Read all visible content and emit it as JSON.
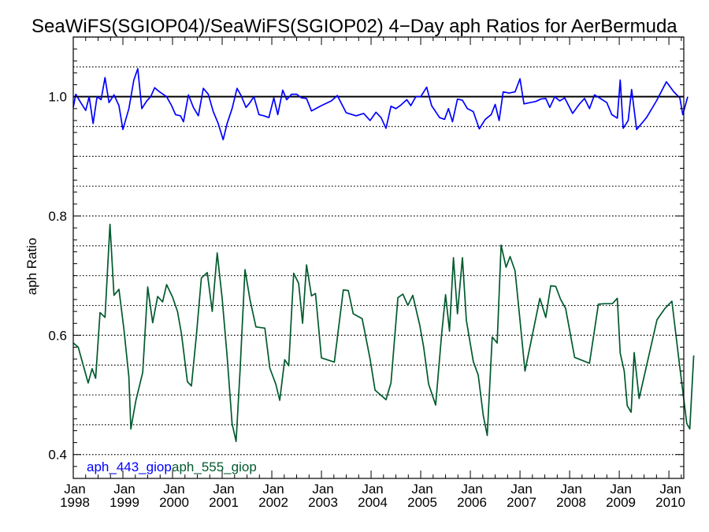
{
  "chart_data": {
    "type": "line",
    "title": "SeaWiFS(SGIOP04)/SeaWiFS(SGIOP02) 4−Day aph Ratios for AerBermuda",
    "ylabel": "aph Ratio",
    "xlabel": "",
    "xlim": [
      1998.0,
      2010.3
    ],
    "ylim": [
      0.36,
      1.1
    ],
    "y_ticks": [
      0.4,
      0.6,
      0.8,
      1.0
    ],
    "y_tick_labels": [
      "0.4",
      "0.6",
      "0.8",
      "1.0"
    ],
    "x_ticks": [
      {
        "x": 1998,
        "month": "Jan",
        "year": "1998"
      },
      {
        "x": 1999,
        "month": "Jan",
        "year": "1999"
      },
      {
        "x": 2000,
        "month": "Jan",
        "year": "2000"
      },
      {
        "x": 2001,
        "month": "Jan",
        "year": "2001"
      },
      {
        "x": 2002,
        "month": "Jan",
        "year": "2002"
      },
      {
        "x": 2003,
        "month": "Jan",
        "year": "2003"
      },
      {
        "x": 2004,
        "month": "Jan",
        "year": "2004"
      },
      {
        "x": 2005,
        "month": "Jan",
        "year": "2005"
      },
      {
        "x": 2006,
        "month": "Jan",
        "year": "2006"
      },
      {
        "x": 2007,
        "month": "Jan",
        "year": "2007"
      },
      {
        "x": 2008,
        "month": "Jan",
        "year": "2008"
      },
      {
        "x": 2009,
        "month": "Jan",
        "year": "2009"
      },
      {
        "x": 2010,
        "month": "Jan",
        "year": "2010"
      }
    ],
    "grid": "horizontal dotted",
    "reference_line": 1.0,
    "legend_position": "bottom-left",
    "series": [
      {
        "name": "aph_443_giop",
        "color": "#0000ff",
        "points": [
          [
            1998.0,
            0.982
          ],
          [
            1998.05,
            1.004
          ],
          [
            1998.15,
            0.99
          ],
          [
            1998.25,
            0.977
          ],
          [
            1998.32,
            1.0
          ],
          [
            1998.4,
            0.955
          ],
          [
            1998.48,
            1.0
          ],
          [
            1998.56,
            0.995
          ],
          [
            1998.64,
            1.032
          ],
          [
            1998.72,
            0.99
          ],
          [
            1998.82,
            1.003
          ],
          [
            1998.92,
            0.985
          ],
          [
            1999.0,
            0.945
          ],
          [
            1999.12,
            0.98
          ],
          [
            1999.22,
            1.028
          ],
          [
            1999.3,
            1.047
          ],
          [
            1999.38,
            0.98
          ],
          [
            1999.48,
            0.993
          ],
          [
            1999.56,
            1.0
          ],
          [
            1999.64,
            1.015
          ],
          [
            1999.74,
            1.008
          ],
          [
            1999.88,
            1.0
          ],
          [
            1999.98,
            0.985
          ],
          [
            2000.06,
            0.97
          ],
          [
            2000.16,
            0.968
          ],
          [
            2000.22,
            0.958
          ],
          [
            2000.32,
            1.003
          ],
          [
            2000.42,
            0.982
          ],
          [
            2000.52,
            0.968
          ],
          [
            2000.62,
            1.014
          ],
          [
            2000.72,
            1.004
          ],
          [
            2000.82,
            0.975
          ],
          [
            2000.92,
            0.955
          ],
          [
            2001.02,
            0.928
          ],
          [
            2001.1,
            0.955
          ],
          [
            2001.2,
            0.98
          ],
          [
            2001.3,
            1.014
          ],
          [
            2001.38,
            1.002
          ],
          [
            2001.48,
            0.982
          ],
          [
            2001.56,
            0.99
          ],
          [
            2001.64,
            1.0
          ],
          [
            2001.74,
            0.97
          ],
          [
            2001.84,
            0.968
          ],
          [
            2001.94,
            0.965
          ],
          [
            2002.04,
            0.998
          ],
          [
            2002.12,
            0.97
          ],
          [
            2002.22,
            1.011
          ],
          [
            2002.3,
            0.995
          ],
          [
            2002.4,
            1.004
          ],
          [
            2002.5,
            1.004
          ],
          [
            2002.6,
            0.998
          ],
          [
            2002.7,
            0.997
          ],
          [
            2002.8,
            0.976
          ],
          [
            2003.0,
            0.985
          ],
          [
            2003.2,
            0.993
          ],
          [
            2003.32,
            1.002
          ],
          [
            2003.5,
            0.973
          ],
          [
            2003.7,
            0.968
          ],
          [
            2003.85,
            0.972
          ],
          [
            2003.98,
            0.96
          ],
          [
            2004.1,
            0.974
          ],
          [
            2004.2,
            0.965
          ],
          [
            2004.3,
            0.947
          ],
          [
            2004.4,
            0.984
          ],
          [
            2004.5,
            0.98
          ],
          [
            2004.6,
            0.986
          ],
          [
            2004.72,
            0.995
          ],
          [
            2004.8,
            0.985
          ],
          [
            2004.9,
            1.0
          ],
          [
            2005.0,
            1.0
          ],
          [
            2005.12,
            1.016
          ],
          [
            2005.22,
            0.985
          ],
          [
            2005.38,
            0.965
          ],
          [
            2005.48,
            0.962
          ],
          [
            2005.56,
            0.98
          ],
          [
            2005.64,
            0.958
          ],
          [
            2005.74,
            0.996
          ],
          [
            2005.84,
            0.994
          ],
          [
            2005.94,
            0.98
          ],
          [
            2006.06,
            0.975
          ],
          [
            2006.18,
            0.946
          ],
          [
            2006.3,
            0.962
          ],
          [
            2006.42,
            0.97
          ],
          [
            2006.5,
            0.987
          ],
          [
            2006.58,
            0.96
          ],
          [
            2006.66,
            1.008
          ],
          [
            2006.78,
            1.006
          ],
          [
            2006.9,
            1.008
          ],
          [
            2007.0,
            1.03
          ],
          [
            2007.08,
            0.988
          ],
          [
            2007.2,
            0.99
          ],
          [
            2007.32,
            0.992
          ],
          [
            2007.42,
            0.996
          ],
          [
            2007.52,
            0.997
          ],
          [
            2007.6,
            0.982
          ],
          [
            2007.7,
            1.0
          ],
          [
            2007.8,
            0.993
          ],
          [
            2007.9,
            0.998
          ],
          [
            2008.06,
            0.972
          ],
          [
            2008.2,
            0.988
          ],
          [
            2008.3,
            0.997
          ],
          [
            2008.4,
            0.98
          ],
          [
            2008.5,
            1.003
          ],
          [
            2008.6,
            0.998
          ],
          [
            2008.75,
            0.99
          ],
          [
            2008.85,
            0.97
          ],
          [
            2008.96,
            0.964
          ],
          [
            2009.02,
            1.028
          ],
          [
            2009.08,
            0.947
          ],
          [
            2009.18,
            0.96
          ],
          [
            2009.25,
            1.012
          ],
          [
            2009.35,
            0.945
          ],
          [
            2009.55,
            0.965
          ],
          [
            2009.75,
            0.993
          ],
          [
            2009.95,
            1.025
          ],
          [
            2010.1,
            1.008
          ],
          [
            2010.22,
            0.998
          ],
          [
            2010.28,
            0.97
          ],
          [
            2010.38,
            1.0
          ]
        ]
      },
      {
        "name": "aph_555_giop",
        "color": "#005a2e",
        "points": [
          [
            1998.0,
            0.587
          ],
          [
            1998.1,
            0.58
          ],
          [
            1998.3,
            0.52
          ],
          [
            1998.38,
            0.544
          ],
          [
            1998.45,
            0.528
          ],
          [
            1998.54,
            0.638
          ],
          [
            1998.64,
            0.63
          ],
          [
            1998.74,
            0.786
          ],
          [
            1998.82,
            0.667
          ],
          [
            1998.92,
            0.677
          ],
          [
            1999.02,
            0.61
          ],
          [
            1999.12,
            0.53
          ],
          [
            1999.16,
            0.443
          ],
          [
            1999.26,
            0.49
          ],
          [
            1999.4,
            0.538
          ],
          [
            1999.5,
            0.681
          ],
          [
            1999.6,
            0.621
          ],
          [
            1999.7,
            0.665
          ],
          [
            1999.8,
            0.656
          ],
          [
            1999.88,
            0.685
          ],
          [
            2000.0,
            0.664
          ],
          [
            2000.1,
            0.64
          ],
          [
            2000.18,
            0.602
          ],
          [
            2000.3,
            0.522
          ],
          [
            2000.38,
            0.515
          ],
          [
            2000.48,
            0.6
          ],
          [
            2000.58,
            0.696
          ],
          [
            2000.7,
            0.705
          ],
          [
            2000.8,
            0.64
          ],
          [
            2000.9,
            0.738
          ],
          [
            2001.0,
            0.662
          ],
          [
            2001.1,
            0.565
          ],
          [
            2001.2,
            0.452
          ],
          [
            2001.28,
            0.422
          ],
          [
            2001.36,
            0.54
          ],
          [
            2001.46,
            0.71
          ],
          [
            2001.56,
            0.66
          ],
          [
            2001.68,
            0.614
          ],
          [
            2001.86,
            0.612
          ],
          [
            2001.96,
            0.545
          ],
          [
            2002.08,
            0.518
          ],
          [
            2002.16,
            0.491
          ],
          [
            2002.26,
            0.559
          ],
          [
            2002.34,
            0.549
          ],
          [
            2002.44,
            0.704
          ],
          [
            2002.54,
            0.687
          ],
          [
            2002.62,
            0.62
          ],
          [
            2002.7,
            0.718
          ],
          [
            2002.8,
            0.666
          ],
          [
            2002.88,
            0.67
          ],
          [
            2003.0,
            0.562
          ],
          [
            2003.26,
            0.555
          ],
          [
            2003.44,
            0.676
          ],
          [
            2003.54,
            0.675
          ],
          [
            2003.64,
            0.636
          ],
          [
            2003.82,
            0.628
          ],
          [
            2003.98,
            0.56
          ],
          [
            2004.08,
            0.508
          ],
          [
            2004.3,
            0.492
          ],
          [
            2004.4,
            0.52
          ],
          [
            2004.54,
            0.663
          ],
          [
            2004.64,
            0.669
          ],
          [
            2004.74,
            0.65
          ],
          [
            2004.84,
            0.667
          ],
          [
            2004.98,
            0.617
          ],
          [
            2005.06,
            0.58
          ],
          [
            2005.16,
            0.518
          ],
          [
            2005.3,
            0.483
          ],
          [
            2005.42,
            0.6
          ],
          [
            2005.5,
            0.668
          ],
          [
            2005.58,
            0.607
          ],
          [
            2005.66,
            0.73
          ],
          [
            2005.74,
            0.636
          ],
          [
            2005.84,
            0.73
          ],
          [
            2005.92,
            0.625
          ],
          [
            2006.06,
            0.556
          ],
          [
            2006.16,
            0.533
          ],
          [
            2006.26,
            0.466
          ],
          [
            2006.34,
            0.432
          ],
          [
            2006.44,
            0.597
          ],
          [
            2006.54,
            0.587
          ],
          [
            2006.62,
            0.751
          ],
          [
            2006.72,
            0.714
          ],
          [
            2006.8,
            0.732
          ],
          [
            2006.9,
            0.708
          ],
          [
            2007.0,
            0.625
          ],
          [
            2007.1,
            0.54
          ],
          [
            2007.4,
            0.662
          ],
          [
            2007.52,
            0.63
          ],
          [
            2007.62,
            0.683
          ],
          [
            2007.72,
            0.682
          ],
          [
            2007.82,
            0.66
          ],
          [
            2007.92,
            0.645
          ],
          [
            2008.1,
            0.563
          ],
          [
            2008.4,
            0.553
          ],
          [
            2008.58,
            0.652
          ],
          [
            2008.7,
            0.653
          ],
          [
            2008.86,
            0.653
          ],
          [
            2008.96,
            0.662
          ],
          [
            2009.02,
            0.57
          ],
          [
            2009.1,
            0.54
          ],
          [
            2009.16,
            0.482
          ],
          [
            2009.24,
            0.471
          ],
          [
            2009.3,
            0.571
          ],
          [
            2009.4,
            0.494
          ],
          [
            2009.76,
            0.626
          ],
          [
            2009.92,
            0.645
          ],
          [
            2010.06,
            0.657
          ],
          [
            2010.2,
            0.56
          ],
          [
            2010.36,
            0.452
          ],
          [
            2010.42,
            0.443
          ],
          [
            2010.5,
            0.566
          ]
        ]
      }
    ]
  }
}
